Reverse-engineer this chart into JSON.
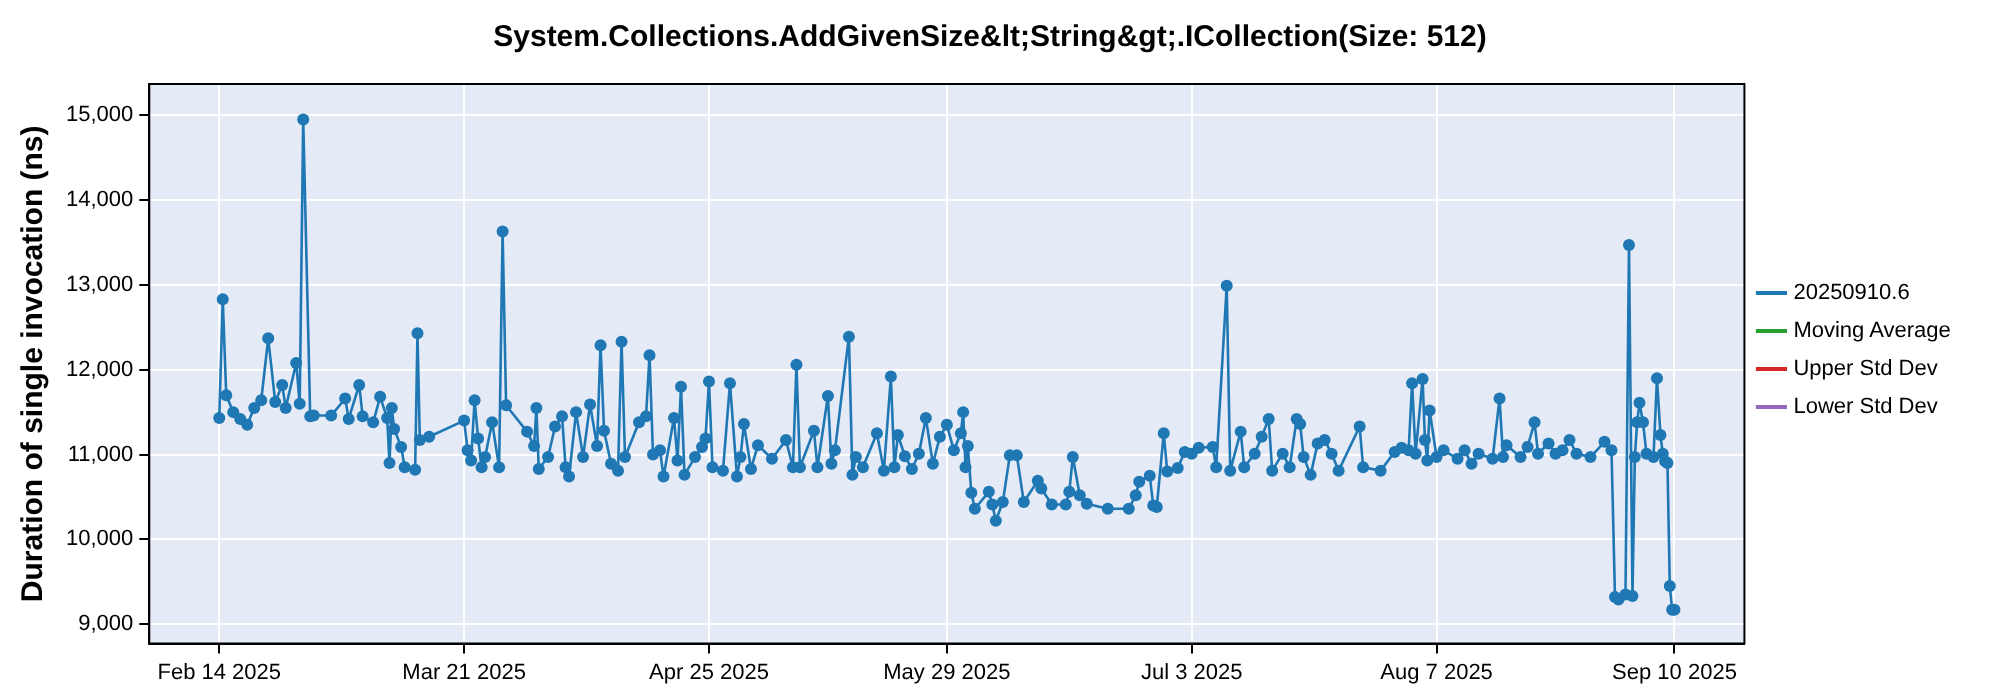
{
  "chart_data": {
    "type": "line",
    "title": "System.Collections.AddGivenSize&lt;String&gt;.ICollection(Size: 512)",
    "ylabel": "Duration of single invocation (ns)",
    "x": [
      "2025-02-14",
      "2025-02-14T12:00",
      "2025-02-15",
      "2025-02-16",
      "2025-02-17",
      "2025-02-18",
      "2025-02-19",
      "2025-02-20",
      "2025-02-21",
      "2025-02-22",
      "2025-02-23",
      "2025-02-23T12:00",
      "2025-02-25",
      "2025-02-25T12:00",
      "2025-02-26",
      "2025-02-27",
      "2025-02-27T12:00",
      "2025-03-02",
      "2025-03-04",
      "2025-03-04T12:00",
      "2025-03-06",
      "2025-03-06T12:00",
      "2025-03-08",
      "2025-03-09",
      "2025-03-10",
      "2025-03-10T08:00",
      "2025-03-10T16:00",
      "2025-03-11",
      "2025-03-12",
      "2025-03-12T12:00",
      "2025-03-14",
      "2025-03-14T08:00",
      "2025-03-14T16:00",
      "2025-03-16",
      "2025-03-21",
      "2025-03-21T12:00",
      "2025-03-22",
      "2025-03-22T12:00",
      "2025-03-23",
      "2025-03-23T12:00",
      "2025-03-24",
      "2025-03-25",
      "2025-03-26",
      "2025-03-26T12:00",
      "2025-03-27",
      "2025-03-30",
      "2025-03-31",
      "2025-03-31T08:00",
      "2025-03-31T16:00",
      "2025-04-02",
      "2025-04-03",
      "2025-04-04",
      "2025-04-04T12:00",
      "2025-04-05",
      "2025-04-06",
      "2025-04-07",
      "2025-04-08",
      "2025-04-09",
      "2025-04-09T12:00",
      "2025-04-10",
      "2025-04-11",
      "2025-04-12",
      "2025-04-12T12:00",
      "2025-04-13",
      "2025-04-15",
      "2025-04-16",
      "2025-04-16T12:00",
      "2025-04-17",
      "2025-04-18",
      "2025-04-18T12:00",
      "2025-04-20",
      "2025-04-20T12:00",
      "2025-04-21",
      "2025-04-21T12:00",
      "2025-04-23",
      "2025-04-24",
      "2025-04-24T12:00",
      "2025-04-25",
      "2025-04-25T12:00",
      "2025-04-27",
      "2025-04-28",
      "2025-04-29",
      "2025-04-29T12:00",
      "2025-04-30",
      "2025-05-01",
      "2025-05-02",
      "2025-05-04",
      "2025-05-06",
      "2025-05-07",
      "2025-05-07T12:00",
      "2025-05-08",
      "2025-05-10",
      "2025-05-10T12:00",
      "2025-05-12",
      "2025-05-12T12:00",
      "2025-05-13",
      "2025-05-15",
      "2025-05-15T12:00",
      "2025-05-16",
      "2025-05-17",
      "2025-05-19",
      "2025-05-20",
      "2025-05-21",
      "2025-05-21T12:00",
      "2025-05-22",
      "2025-05-23",
      "2025-05-24",
      "2025-05-25",
      "2025-05-26",
      "2025-05-27",
      "2025-05-28",
      "2025-05-29",
      "2025-05-30",
      "2025-05-31",
      "2025-05-31T08:00",
      "2025-05-31T16:00",
      "2025-06-01",
      "2025-06-01T12:00",
      "2025-06-02",
      "2025-06-04",
      "2025-06-04T12:00",
      "2025-06-05",
      "2025-06-06",
      "2025-06-07",
      "2025-06-08",
      "2025-06-09",
      "2025-06-11",
      "2025-06-11T12:00",
      "2025-06-13",
      "2025-06-15",
      "2025-06-15T12:00",
      "2025-06-16",
      "2025-06-17",
      "2025-06-18",
      "2025-06-21",
      "2025-06-24",
      "2025-06-25",
      "2025-06-25T12:00",
      "2025-06-27",
      "2025-06-27T12:00",
      "2025-06-28",
      "2025-06-29",
      "2025-06-29T12:00",
      "2025-07-01",
      "2025-07-02",
      "2025-07-03",
      "2025-07-04",
      "2025-07-06",
      "2025-07-06T12:00",
      "2025-07-08",
      "2025-07-08T12:00",
      "2025-07-10",
      "2025-07-10T12:00",
      "2025-07-12",
      "2025-07-13",
      "2025-07-14",
      "2025-07-14T12:00",
      "2025-07-16",
      "2025-07-17",
      "2025-07-18",
      "2025-07-18T12:00",
      "2025-07-19",
      "2025-07-20",
      "2025-07-21",
      "2025-07-22",
      "2025-07-23",
      "2025-07-24",
      "2025-07-27",
      "2025-07-27T12:00",
      "2025-07-30",
      "2025-08-01",
      "2025-08-02",
      "2025-08-03",
      "2025-08-03T12:00",
      "2025-08-04",
      "2025-08-05",
      "2025-08-05T08:00",
      "2025-08-05T16:00",
      "2025-08-06",
      "2025-08-07",
      "2025-08-08",
      "2025-08-10",
      "2025-08-11",
      "2025-08-12",
      "2025-08-13",
      "2025-08-15",
      "2025-08-16",
      "2025-08-16T12:00",
      "2025-08-17",
      "2025-08-19",
      "2025-08-20",
      "2025-08-21",
      "2025-08-21T12:00",
      "2025-08-23",
      "2025-08-24",
      "2025-08-25",
      "2025-08-26",
      "2025-08-27",
      "2025-08-29",
      "2025-08-31",
      "2025-09-01",
      "2025-09-01T12:00",
      "2025-09-02",
      "2025-09-03",
      "2025-09-03T12:00",
      "2025-09-04",
      "2025-09-04T08:00",
      "2025-09-04T16:00",
      "2025-09-05",
      "2025-09-05T12:00",
      "2025-09-06",
      "2025-09-07",
      "2025-09-07T12:00",
      "2025-09-08",
      "2025-09-08T08:00",
      "2025-09-08T16:00",
      "2025-09-09",
      "2025-09-09T08:00",
      "2025-09-09T16:00",
      "2025-09-10"
    ],
    "series": [
      {
        "name": "20250910.6",
        "color": "#1f77b4",
        "values": [
          11430,
          12830,
          11700,
          11500,
          11420,
          11350,
          11550,
          11640,
          12370,
          11620,
          11820,
          11550,
          12080,
          11600,
          14950,
          11450,
          11460,
          11460,
          11660,
          11420,
          11820,
          11450,
          11380,
          11680,
          11430,
          10900,
          11550,
          11300,
          11090,
          10850,
          10820,
          12430,
          11170,
          11210,
          11400,
          11050,
          10930,
          11640,
          11190,
          10850,
          10970,
          11380,
          10850,
          13630,
          11580,
          11270,
          11100,
          11550,
          10830,
          10970,
          11330,
          11450,
          10850,
          10740,
          11500,
          10970,
          11590,
          11100,
          12290,
          11280,
          10890,
          10810,
          12330,
          10970,
          11380,
          11450,
          12170,
          11000,
          11050,
          10740,
          11430,
          10930,
          11800,
          10760,
          10970,
          11090,
          11190,
          11860,
          10850,
          10810,
          11840,
          10740,
          10970,
          11360,
          10830,
          11110,
          10950,
          11170,
          10850,
          12060,
          10850,
          11280,
          10850,
          11690,
          10890,
          11050,
          12390,
          10760,
          10970,
          10850,
          11250,
          10810,
          11920,
          10850,
          11230,
          10980,
          10830,
          11010,
          11430,
          10890,
          11210,
          11350,
          11050,
          11250,
          11500,
          10850,
          11100,
          10550,
          10360,
          10560,
          10410,
          10220,
          10440,
          10990,
          10990,
          10440,
          10690,
          10600,
          10410,
          10410,
          10560,
          10970,
          10520,
          10420,
          10360,
          10360,
          10520,
          10680,
          10750,
          10400,
          10380,
          11250,
          10800,
          10840,
          11030,
          11010,
          11080,
          11090,
          10850,
          12990,
          10810,
          11270,
          10850,
          11010,
          11210,
          11420,
          10810,
          11010,
          10850,
          11420,
          11360,
          10970,
          10760,
          11130,
          11170,
          11010,
          10810,
          11330,
          10850,
          10810,
          11030,
          11080,
          11050,
          11840,
          11010,
          11890,
          11170,
          10930,
          11520,
          10970,
          11050,
          10950,
          11050,
          10890,
          11010,
          10950,
          11660,
          10970,
          11110,
          10970,
          11090,
          11380,
          11010,
          11130,
          11010,
          11050,
          11170,
          11010,
          10970,
          11150,
          11050,
          9320,
          9290,
          9350,
          13470,
          9330,
          10970,
          11380,
          11610,
          11380,
          11010,
          10970,
          11900,
          11230,
          11010,
          10920,
          10900,
          9450,
          9170,
          9170
        ]
      },
      {
        "name": "Moving Average",
        "color": "#2ca02c",
        "values": [
          null,
          null,
          null,
          null,
          null,
          null,
          null,
          null,
          null,
          null,
          null,
          null,
          null,
          null,
          null,
          null,
          null,
          null,
          null,
          null,
          null,
          null,
          null,
          null,
          null,
          null,
          null,
          null,
          null,
          null,
          null,
          null,
          null,
          null,
          null,
          null,
          null,
          null,
          null,
          null,
          null,
          null,
          null,
          null,
          null,
          null,
          null,
          null,
          null,
          null,
          null,
          null,
          null,
          null,
          null,
          null,
          null,
          null,
          null,
          null,
          null,
          null,
          null,
          null,
          null,
          null,
          null,
          null,
          null,
          null,
          null,
          null,
          null,
          null,
          null,
          null,
          null,
          null,
          null,
          null,
          null,
          null,
          null,
          null,
          null,
          null,
          null,
          null,
          null,
          null,
          null,
          null,
          null,
          null,
          null,
          null,
          null,
          null,
          null,
          null,
          null,
          null,
          null,
          null,
          null,
          null,
          null,
          null,
          null,
          null,
          null,
          null,
          null,
          null,
          null,
          null,
          null,
          null,
          null,
          null,
          null,
          null,
          null,
          null,
          null,
          null,
          null,
          null,
          null,
          null,
          null,
          null,
          null,
          null,
          null,
          null,
          null,
          null,
          null,
          null,
          null,
          null,
          null,
          null,
          null,
          null,
          null,
          null,
          null,
          null,
          null,
          null,
          null,
          null,
          null,
          null,
          null,
          null,
          null,
          null,
          null,
          null,
          null,
          null,
          null,
          null,
          null,
          null,
          null,
          null,
          null,
          null,
          null,
          null,
          null,
          null,
          null,
          null,
          null,
          null,
          null,
          null,
          null,
          null,
          null,
          null,
          null,
          null,
          null,
          null,
          null,
          null,
          null,
          null,
          null,
          null,
          null,
          null,
          null,
          null,
          null,
          null,
          null,
          null,
          null,
          null,
          null,
          null,
          null,
          null,
          null,
          null,
          null,
          null,
          null,
          null,
          null,
          null,
          null,
          null
        ]
      },
      {
        "name": "Upper Std Dev",
        "color": "#d62728",
        "values": [
          null,
          null,
          null,
          null,
          null,
          null,
          null,
          null,
          null,
          null,
          null,
          null,
          null,
          null,
          null,
          null,
          null,
          null,
          null,
          null,
          null,
          null,
          null,
          null,
          null,
          null,
          null,
          null,
          null,
          null,
          null,
          null,
          null,
          null,
          null,
          null,
          null,
          null,
          null,
          null,
          null,
          null,
          null,
          null,
          null,
          null,
          null,
          null,
          null,
          null,
          null,
          null,
          null,
          null,
          null,
          null,
          null,
          null,
          null,
          null,
          null,
          null,
          null,
          null,
          null,
          null,
          null,
          null,
          null,
          null,
          null,
          null,
          null,
          null,
          null,
          null,
          null,
          null,
          null,
          null,
          null,
          null,
          null,
          null,
          null,
          null,
          null,
          null,
          null,
          null,
          null,
          null,
          null,
          null,
          null,
          null,
          null,
          null,
          null,
          null,
          null,
          null,
          null,
          null,
          null,
          null,
          null,
          null,
          null,
          null,
          null,
          null,
          null,
          null,
          null,
          null,
          null,
          null,
          null,
          null,
          null,
          null,
          null,
          null,
          null,
          null,
          null,
          null,
          null,
          null,
          null,
          null,
          null,
          null,
          null,
          null,
          null,
          null,
          null,
          null,
          null,
          null,
          null,
          null,
          null,
          null,
          null,
          null,
          null,
          null,
          null,
          null,
          null,
          null,
          null,
          null,
          null,
          null,
          null,
          null,
          null,
          null,
          null,
          null,
          null,
          null,
          null,
          null,
          null,
          null,
          null,
          null,
          null,
          null,
          null,
          null,
          null,
          null,
          null,
          null,
          null,
          null,
          null,
          null,
          null,
          null,
          null,
          null,
          null,
          null,
          null,
          null,
          null,
          null,
          null,
          null,
          null,
          null,
          null,
          null,
          null,
          null,
          null,
          null,
          null,
          null,
          null,
          null,
          null,
          null,
          null,
          null,
          null,
          null,
          null,
          null,
          null,
          null,
          null,
          null
        ]
      },
      {
        "name": "Lower Std Dev",
        "color": "#9467bd",
        "values": [
          null,
          null,
          null,
          null,
          null,
          null,
          null,
          null,
          null,
          null,
          null,
          null,
          null,
          null,
          null,
          null,
          null,
          null,
          null,
          null,
          null,
          null,
          null,
          null,
          null,
          null,
          null,
          null,
          null,
          null,
          null,
          null,
          null,
          null,
          null,
          null,
          null,
          null,
          null,
          null,
          null,
          null,
          null,
          null,
          null,
          null,
          null,
          null,
          null,
          null,
          null,
          null,
          null,
          null,
          null,
          null,
          null,
          null,
          null,
          null,
          null,
          null,
          null,
          null,
          null,
          null,
          null,
          null,
          null,
          null,
          null,
          null,
          null,
          null,
          null,
          null,
          null,
          null,
          null,
          null,
          null,
          null,
          null,
          null,
          null,
          null,
          null,
          null,
          null,
          null,
          null,
          null,
          null,
          null,
          null,
          null,
          null,
          null,
          null,
          null,
          null,
          null,
          null,
          null,
          null,
          null,
          null,
          null,
          null,
          null,
          null,
          null,
          null,
          null,
          null,
          null,
          null,
          null,
          null,
          null,
          null,
          null,
          null,
          null,
          null,
          null,
          null,
          null,
          null,
          null,
          null,
          null,
          null,
          null,
          null,
          null,
          null,
          null,
          null,
          null,
          null,
          null,
          null,
          null,
          null,
          null,
          null,
          null,
          null,
          null,
          null,
          null,
          null,
          null,
          null,
          null,
          null,
          null,
          null,
          null,
          null,
          null,
          null,
          null,
          null,
          null,
          null,
          null,
          null,
          null,
          null,
          null,
          null,
          null,
          null,
          null,
          null,
          null,
          null,
          null,
          null,
          null,
          null,
          null,
          null,
          null,
          null,
          null,
          null,
          null,
          null,
          null,
          null,
          null,
          null,
          null,
          null,
          null,
          null,
          null,
          null,
          null,
          null,
          null,
          null,
          null,
          null,
          null,
          null,
          null,
          null,
          null,
          null,
          null,
          null,
          null,
          null,
          null,
          null,
          null
        ]
      }
    ],
    "xlim": [
      "2025-02-04",
      "2025-09-20"
    ],
    "xticks": [
      {
        "value": "2025-02-14",
        "label": "Feb 14 2025"
      },
      {
        "value": "2025-03-21",
        "label": "Mar 21 2025"
      },
      {
        "value": "2025-04-25",
        "label": "Apr 25 2025"
      },
      {
        "value": "2025-05-29",
        "label": "May 29 2025"
      },
      {
        "value": "2025-07-03",
        "label": "Jul 3 2025"
      },
      {
        "value": "2025-08-07",
        "label": "Aug 7 2025"
      },
      {
        "value": "2025-09-10",
        "label": "Sep 10 2025"
      }
    ],
    "ylim": [
      8770,
      15370
    ],
    "yticks": [
      {
        "value": 9000,
        "label": "9,000"
      },
      {
        "value": 10000,
        "label": "10,000"
      },
      {
        "value": 11000,
        "label": "11,000"
      },
      {
        "value": 12000,
        "label": "12,000"
      },
      {
        "value": 13000,
        "label": "13,000"
      },
      {
        "value": 14000,
        "label": "14,000"
      },
      {
        "value": 15000,
        "label": "15,000"
      }
    ],
    "grid": true,
    "legend": "right",
    "marker": "circle",
    "line_style": "solid"
  }
}
